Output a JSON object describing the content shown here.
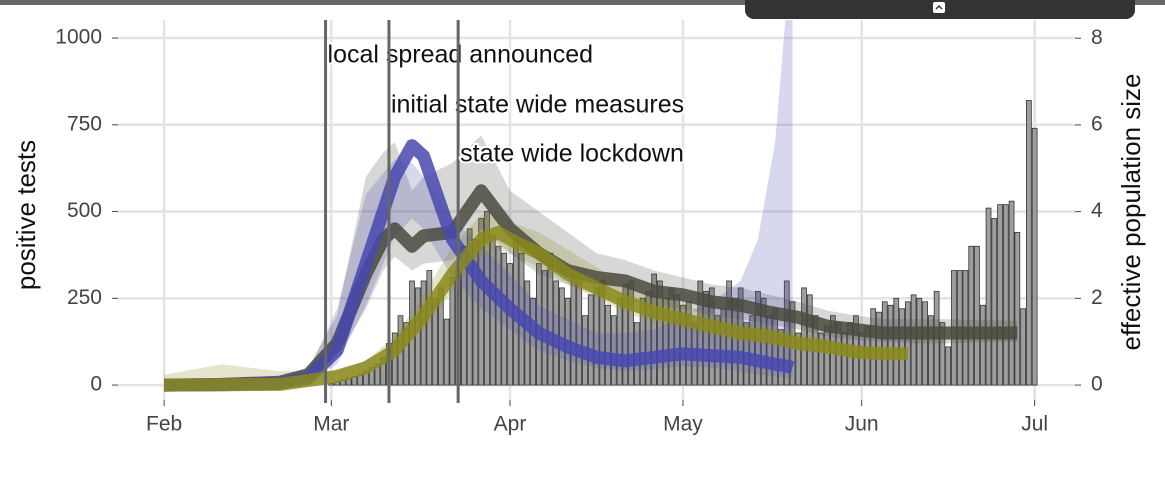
{
  "chart_data": {
    "type": "bar",
    "y_label": "positive tests",
    "y2_label": "effective population size",
    "xlim": [
      -8,
      158
    ],
    "xticks": [
      {
        "value": 0,
        "label": "Feb"
      },
      {
        "value": 29,
        "label": "Mar"
      },
      {
        "value": 60,
        "label": "Apr"
      },
      {
        "value": 90,
        "label": "May"
      },
      {
        "value": 121,
        "label": "Jun"
      },
      {
        "value": 151,
        "label": "Jul"
      }
    ],
    "ylim": [
      -43,
      1052
    ],
    "yticks": [
      0,
      250,
      500,
      750,
      1000
    ],
    "y2lim": [
      -0.344,
      8.42
    ],
    "y2ticks": [
      0,
      2,
      4,
      6,
      8
    ],
    "grid": true,
    "bar_color": "#9e9e9e",
    "annotations": [
      {
        "x": 28,
        "label": "local spread announced"
      },
      {
        "x": 39,
        "label": "initial state wide measures"
      },
      {
        "x": 51,
        "label": "state wide lockdown"
      }
    ],
    "x": [
      29,
      30,
      31,
      32,
      33,
      34,
      35,
      36,
      37,
      38,
      39,
      40,
      41,
      42,
      43,
      44,
      45,
      46,
      47,
      48,
      49,
      50,
      51,
      52,
      53,
      54,
      55,
      56,
      57,
      58,
      59,
      60,
      61,
      62,
      63,
      64,
      65,
      66,
      67,
      68,
      69,
      70,
      71,
      72,
      73,
      74,
      75,
      76,
      77,
      78,
      79,
      80,
      81,
      82,
      83,
      84,
      85,
      86,
      87,
      88,
      89,
      90,
      91,
      92,
      93,
      94,
      95,
      96,
      97,
      98,
      99,
      100,
      101,
      102,
      103,
      104,
      105,
      106,
      107,
      108,
      109,
      110,
      111,
      112,
      113,
      114,
      115,
      116,
      117,
      118,
      119,
      120,
      121,
      122,
      123,
      124,
      125,
      126,
      127,
      128,
      129,
      130,
      131,
      132,
      133,
      134,
      135,
      136,
      137,
      138,
      139,
      140,
      141,
      142,
      143,
      144,
      145,
      146,
      147,
      148,
      149,
      150,
      151
    ],
    "values": [
      5,
      10,
      15,
      20,
      25,
      30,
      40,
      50,
      60,
      80,
      120,
      150,
      200,
      180,
      300,
      280,
      300,
      330,
      250,
      280,
      190,
      310,
      330,
      400,
      450,
      420,
      480,
      500,
      430,
      400,
      380,
      350,
      420,
      380,
      300,
      250,
      350,
      330,
      380,
      300,
      280,
      250,
      320,
      300,
      200,
      260,
      280,
      300,
      230,
      200,
      250,
      290,
      300,
      180,
      250,
      270,
      320,
      300,
      250,
      280,
      260,
      230,
      240,
      180,
      300,
      270,
      280,
      200,
      220,
      300,
      250,
      280,
      180,
      200,
      270,
      250,
      200,
      220,
      160,
      300,
      240,
      150,
      280,
      260,
      200,
      150,
      170,
      200,
      180,
      150,
      180,
      200,
      150,
      170,
      220,
      210,
      240,
      230,
      250,
      220,
      240,
      260,
      250,
      240,
      200,
      270,
      180,
      110,
      330,
      330,
      330,
      400,
      400,
      230,
      510,
      480,
      520,
      520,
      530,
      440,
      220,
      820,
      740
    ],
    "series": [
      {
        "color": "#4a4a40",
        "x": [
          0,
          10,
          20,
          25,
          30,
          35,
          38,
          40,
          43,
          45,
          50,
          55,
          60,
          65,
          70,
          75,
          80,
          85,
          90,
          95,
          100,
          105,
          110,
          115,
          120,
          125,
          130,
          135,
          148
        ],
        "values": [
          0,
          2,
          8,
          30,
          120,
          320,
          420,
          450,
          400,
          430,
          440,
          560,
          450,
          380,
          330,
          310,
          300,
          270,
          260,
          240,
          230,
          210,
          195,
          170,
          160,
          150,
          150,
          150,
          150
        ],
        "lower": [
          0,
          1,
          4,
          18,
          80,
          220,
          330,
          370,
          330,
          350,
          360,
          450,
          380,
          320,
          290,
          260,
          250,
          230,
          220,
          200,
          190,
          175,
          160,
          140,
          130,
          125,
          120,
          120,
          125
        ],
        "upper": [
          0,
          4,
          15,
          50,
          200,
          600,
          670,
          700,
          560,
          600,
          640,
          720,
          560,
          500,
          440,
          380,
          360,
          330,
          310,
          290,
          280,
          260,
          240,
          215,
          200,
          190,
          190,
          190,
          185
        ]
      },
      {
        "color": "#4848b0",
        "x": [
          0,
          10,
          20,
          25,
          30,
          35,
          40,
          43,
          45,
          50,
          55,
          60,
          65,
          70,
          75,
          80,
          85,
          90,
          95,
          100,
          103,
          106,
          108,
          109
        ],
        "values": [
          0,
          1,
          5,
          20,
          100,
          350,
          600,
          690,
          660,
          420,
          300,
          220,
          150,
          110,
          80,
          70,
          80,
          90,
          85,
          80,
          70,
          60,
          55,
          50
        ],
        "lower": [
          0,
          0,
          2,
          10,
          60,
          230,
          430,
          480,
          450,
          310,
          220,
          160,
          100,
          70,
          50,
          40,
          45,
          55,
          50,
          40,
          30,
          25,
          20,
          20
        ],
        "upper": [
          0,
          3,
          10,
          40,
          220,
          550,
          650,
          640,
          600,
          480,
          400,
          320,
          230,
          190,
          150,
          150,
          160,
          200,
          240,
          300,
          420,
          700,
          1100,
          1100
        ]
      },
      {
        "color": "#8a8a1c",
        "x": [
          0,
          10,
          20,
          30,
          35,
          40,
          45,
          50,
          55,
          58,
          60,
          65,
          70,
          75,
          80,
          85,
          90,
          95,
          100,
          105,
          110,
          115,
          120,
          125,
          129
        ],
        "values": [
          0,
          1,
          2,
          25,
          50,
          100,
          200,
          320,
          420,
          440,
          420,
          380,
          320,
          280,
          240,
          210,
          190,
          170,
          150,
          140,
          120,
          110,
          95,
          90,
          90
        ],
        "lower": [
          0,
          0,
          0,
          15,
          35,
          75,
          160,
          270,
          370,
          390,
          380,
          340,
          290,
          250,
          210,
          180,
          160,
          140,
          125,
          115,
          100,
          90,
          80,
          75,
          75
        ],
        "upper": [
          30,
          60,
          40,
          40,
          70,
          140,
          260,
          400,
          490,
          500,
          470,
          440,
          390,
          340,
          290,
          250,
          230,
          210,
          185,
          170,
          150,
          135,
          115,
          105,
          105
        ]
      }
    ]
  }
}
